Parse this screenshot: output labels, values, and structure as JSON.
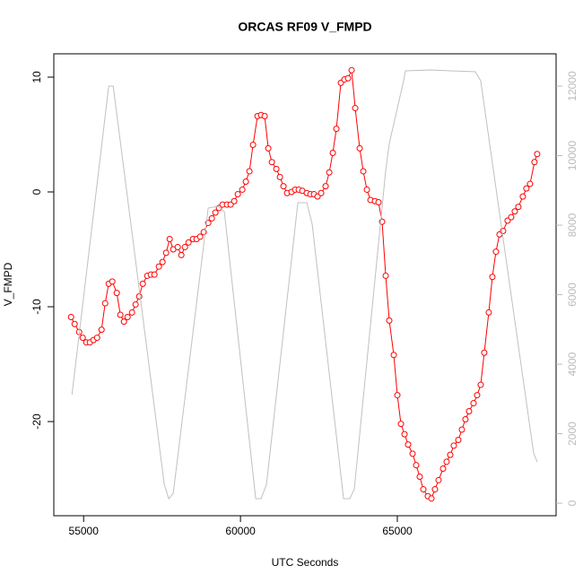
{
  "chart_data": {
    "type": "line",
    "title": "ORCAS RF09 V_FMPD",
    "x_label": "UTC Seconds",
    "y_label": "V_FMPD",
    "xlim": [
      54050,
      70060
    ],
    "ylim": [
      -28.2,
      12.03
    ],
    "y2lim": [
      -360,
      12930
    ],
    "xticks": [
      55000,
      60000,
      65000
    ],
    "yticks": [
      -20,
      -10,
      0,
      10
    ],
    "y2ticks": [
      0,
      2000,
      4000,
      6000,
      8000,
      10000,
      12000
    ],
    "series": [
      {
        "color": "#ff0000",
        "axis": "y",
        "markers": true,
        "x": [
          54600,
          54714,
          54857,
          54971,
          55086,
          55200,
          55314,
          55429,
          55571,
          55686,
          55800,
          55914,
          56057,
          56171,
          56286,
          56400,
          56543,
          56657,
          56771,
          56886,
          57029,
          57143,
          57257,
          57400,
          57514,
          57629,
          57743,
          57857,
          58000,
          58114,
          58229,
          58343,
          58486,
          58600,
          58714,
          58829,
          58971,
          59086,
          59200,
          59314,
          59429,
          59571,
          59686,
          59800,
          59914,
          60057,
          60171,
          60286,
          60400,
          60543,
          60657,
          60771,
          60886,
          61000,
          61143,
          61257,
          61371,
          61486,
          61629,
          61743,
          61857,
          61971,
          62114,
          62229,
          62343,
          62457,
          62571,
          62714,
          62829,
          62943,
          63057,
          63200,
          63314,
          63429,
          63543,
          63657,
          63800,
          63914,
          64029,
          64143,
          64286,
          64400,
          64514,
          64629,
          64743,
          64886,
          65000,
          65114,
          65229,
          65343,
          65486,
          65600,
          65714,
          65829,
          65971,
          66086,
          66200,
          66314,
          66457,
          66571,
          66686,
          66800,
          66943,
          67057,
          67171,
          67286,
          67429,
          67543,
          67657,
          67771,
          67914,
          68029,
          68143,
          68257,
          68371,
          68514,
          68629,
          68743,
          68857,
          69000,
          69114,
          69229,
          69371,
          69457
        ],
        "values": [
          -10.9,
          -11.5,
          -12.2,
          -12.7,
          -13.1,
          -13.1,
          -12.9,
          -12.7,
          -12.0,
          -9.7,
          -8.0,
          -7.8,
          -8.8,
          -10.7,
          -11.3,
          -10.9,
          -10.5,
          -9.8,
          -9.1,
          -8.0,
          -7.3,
          -7.2,
          -7.2,
          -6.5,
          -6.1,
          -5.3,
          -4.1,
          -5.0,
          -4.8,
          -5.5,
          -4.8,
          -4.4,
          -4.1,
          -4.1,
          -3.9,
          -3.5,
          -2.7,
          -2.3,
          -1.8,
          -1.4,
          -1.1,
          -1.1,
          -1.1,
          -0.8,
          -0.2,
          0.2,
          0.9,
          1.8,
          4.1,
          6.6,
          6.7,
          6.6,
          3.8,
          2.6,
          2.0,
          1.3,
          0.5,
          -0.1,
          0.0,
          0.2,
          0.2,
          0.1,
          -0.1,
          -0.2,
          -0.2,
          -0.4,
          -0.1,
          0.5,
          1.7,
          3.4,
          5.5,
          9.5,
          9.8,
          9.9,
          10.6,
          7.3,
          3.8,
          1.8,
          0.2,
          -0.7,
          -0.8,
          -0.9,
          -2.6,
          -7.3,
          -11.2,
          -14.2,
          -17.7,
          -20.2,
          -21.1,
          -22.0,
          -22.8,
          -23.8,
          -24.8,
          -25.9,
          -26.5,
          -26.7,
          -25.9,
          -25.1,
          -24.1,
          -23.5,
          -22.9,
          -22.1,
          -21.6,
          -20.7,
          -19.8,
          -19.1,
          -18.4,
          -17.7,
          -16.8,
          -14.0,
          -10.5,
          -7.4,
          -5.2,
          -3.7,
          -3.4,
          -2.5,
          -2.2,
          -1.7,
          -1.3,
          -0.4,
          0.3,
          0.7,
          2.6,
          3.3
        ]
      },
      {
        "color": "#c0c0c0",
        "axis": "y2",
        "markers": false,
        "x": [
          54629,
          55800,
          55943,
          57571,
          57714,
          57857,
          58971,
          59286,
          59486,
          60486,
          60657,
          60829,
          61829,
          62114,
          62286,
          63286,
          63486,
          63629,
          64629,
          64743,
          65200,
          65257,
          66057,
          67486,
          67657,
          69343,
          69457
        ],
        "values": [
          3123,
          12000,
          12000,
          542,
          129,
          284,
          8490,
          8542,
          8387,
          129,
          129,
          542,
          8645,
          8645,
          8026,
          129,
          129,
          413,
          9574,
          10348,
          12155,
          12439,
          12465,
          12413,
          12155,
          1445,
          1187
        ]
      }
    ]
  }
}
